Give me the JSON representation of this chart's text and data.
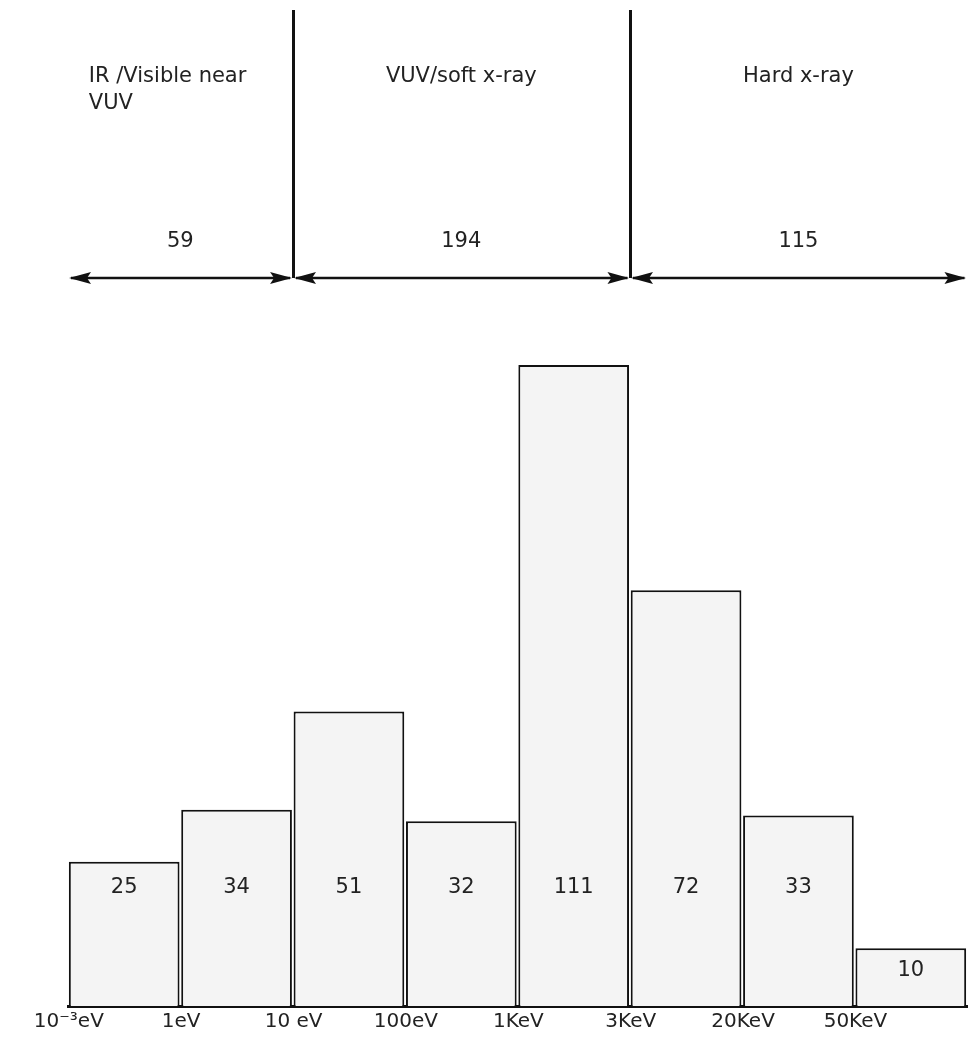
{
  "chart_data": {
    "type": "bar",
    "categories": [
      null,
      null,
      null,
      null,
      null,
      null,
      null,
      null
    ],
    "values": [
      25,
      34,
      51,
      32,
      111,
      72,
      33,
      10
    ],
    "color": "#f4f4f4",
    "data_labels": true,
    "tick_labels": false,
    "annotations": [
      "10⁻³eV",
      "1eV",
      "10 eV",
      "100eV",
      "1KeV",
      "3KeV",
      "20KeV",
      "50KeV",
      "IR /Visible near VUV",
      "59",
      "VUV/soft x-ray",
      "194",
      "Hard x-ray",
      "115"
    ]
  }
}
